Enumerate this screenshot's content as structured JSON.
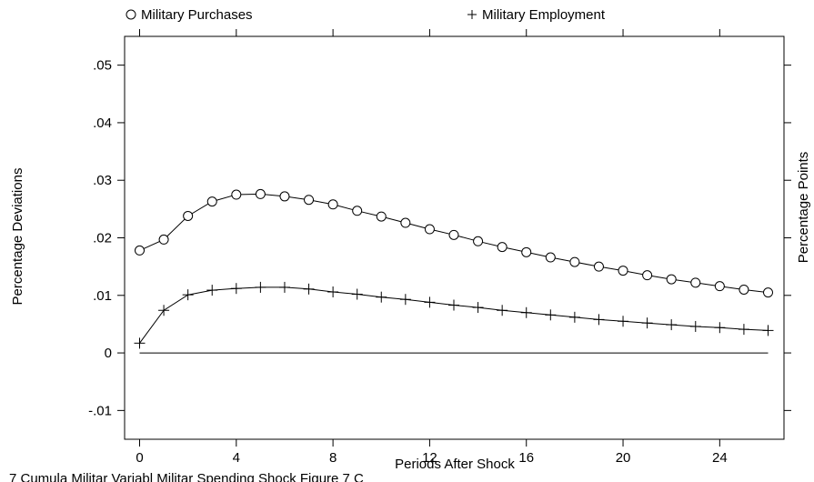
{
  "chart_data": {
    "type": "line",
    "xlabel": "Periods After Shock",
    "ylabel_left": "Percentage Deviations",
    "ylabel_right": "Percentage Points",
    "xlim": [
      0,
      26
    ],
    "ylim": [
      -0.015,
      0.055
    ],
    "x_ticks": [
      0,
      4,
      8,
      12,
      16,
      20,
      24
    ],
    "x_tick_labels": [
      "0",
      "4",
      "8",
      "12",
      "16",
      "20",
      "24"
    ],
    "y_ticks": [
      -0.01,
      0,
      0.01,
      0.02,
      0.03,
      0.04,
      0.05
    ],
    "y_tick_labels": [
      "-.01",
      "0",
      ".01",
      ".02",
      ".03",
      ".04",
      ".05"
    ],
    "grid": false,
    "legend_position": "top",
    "series": [
      {
        "name": "Military Purchases",
        "marker": "circle",
        "legend_symbol": "○",
        "x": [
          0,
          1,
          2,
          3,
          4,
          5,
          6,
          7,
          8,
          9,
          10,
          11,
          12,
          13,
          14,
          15,
          16,
          17,
          18,
          19,
          20,
          21,
          22,
          23,
          24,
          25,
          26
        ],
        "values": [
          0.0178,
          0.0197,
          0.0238,
          0.0263,
          0.0275,
          0.0276,
          0.0272,
          0.0266,
          0.0258,
          0.0247,
          0.0237,
          0.0226,
          0.0215,
          0.0205,
          0.0194,
          0.0184,
          0.0175,
          0.0166,
          0.0158,
          0.015,
          0.0143,
          0.0135,
          0.0128,
          0.0122,
          0.0116,
          0.011,
          0.0105
        ]
      },
      {
        "name": "Military Employment",
        "marker": "plus",
        "legend_symbol": "+",
        "x": [
          0,
          1,
          2,
          3,
          4,
          5,
          6,
          7,
          8,
          9,
          10,
          11,
          12,
          13,
          14,
          15,
          16,
          17,
          18,
          19,
          20,
          21,
          22,
          23,
          24,
          25,
          26
        ],
        "values": [
          0.0017,
          0.0074,
          0.0101,
          0.0109,
          0.0112,
          0.0114,
          0.0114,
          0.0111,
          0.0106,
          0.0102,
          0.0097,
          0.0093,
          0.0088,
          0.0083,
          0.0079,
          0.0074,
          0.007,
          0.0066,
          0.0062,
          0.0058,
          0.0055,
          0.0052,
          0.0049,
          0.0046,
          0.0044,
          0.0041,
          0.0039
        ]
      }
    ],
    "zero_line": 0
  },
  "footer_text": "7 Cumula Militar  Variabl  Militar  Spending  Shock                      Figure 7 C"
}
